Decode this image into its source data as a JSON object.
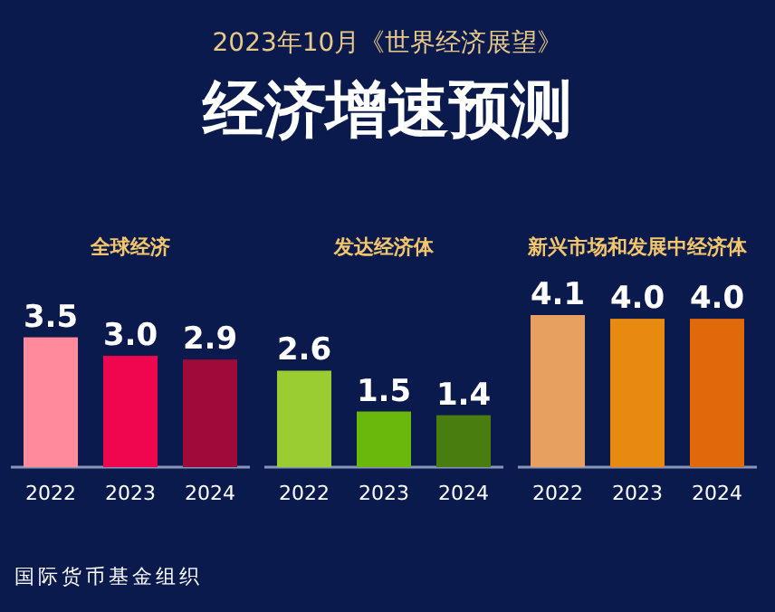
{
  "chart_data": [
    {
      "type": "other",
      "title": "经济增速预测",
      "subtitle": "2023年10月《世界经济展望》",
      "annotations": [
        "国际货币基金组织"
      ]
    },
    {
      "type": "bar",
      "title": "全球经济",
      "categories": [
        "2022",
        "2023",
        "2024"
      ],
      "values": [
        3.5,
        3.0,
        2.9
      ],
      "value_labels": [
        "3.5",
        "3.0",
        "2.9"
      ],
      "colors": [
        "#ff8a9b",
        "#f0064f",
        "#a00a3a"
      ]
    },
    {
      "type": "bar",
      "title": "发达经济体",
      "categories": [
        "2022",
        "2023",
        "2024"
      ],
      "values": [
        2.6,
        1.5,
        1.4
      ],
      "value_labels": [
        "2.6",
        "1.5",
        "1.4"
      ],
      "colors": [
        "#9acd32",
        "#6ab80c",
        "#4a7d10"
      ]
    },
    {
      "type": "bar",
      "title": "新兴市场和发展中经济体",
      "categories": [
        "2022",
        "2023",
        "2024"
      ],
      "values": [
        4.1,
        4.0,
        4.0
      ],
      "value_labels": [
        "4.1",
        "4.0",
        "4.0"
      ],
      "colors": [
        "#e8a060",
        "#e88a10",
        "#e06a0a"
      ]
    }
  ]
}
